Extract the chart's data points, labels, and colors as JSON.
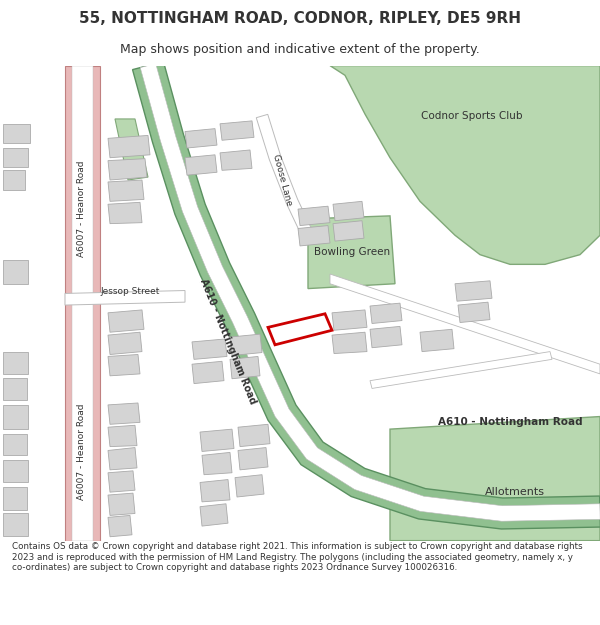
{
  "title": "55, NOTTINGHAM ROAD, CODNOR, RIPLEY, DE5 9RH",
  "subtitle": "Map shows position and indicative extent of the property.",
  "footer": "Contains OS data © Crown copyright and database right 2021. This information is subject to Crown copyright and database rights 2023 and is reproduced with the permission of HM Land Registry. The polygons (including the associated geometry, namely x, y co-ordinates) are subject to Crown copyright and database rights 2023 Ordnance Survey 100026316.",
  "bg": "#ffffff",
  "map_bg": "#f7f7f7",
  "bld": "#d4d4d4",
  "bld_e": "#aaaaaa",
  "green": "#b8d8b0",
  "green_e": "#80a878",
  "road_green": "#90c090",
  "road_green_e": "#5a9060",
  "road_pink": "#e8b8b8",
  "road_pink_e": "#c08080",
  "road_white": "#ffffff",
  "road_gray_e": "#bbbbbb",
  "red_plot": "#cc0000",
  "txt": "#333333",
  "title_size": 11,
  "sub_size": 9,
  "foot_size": 6.3,
  "lbl_size": 7
}
